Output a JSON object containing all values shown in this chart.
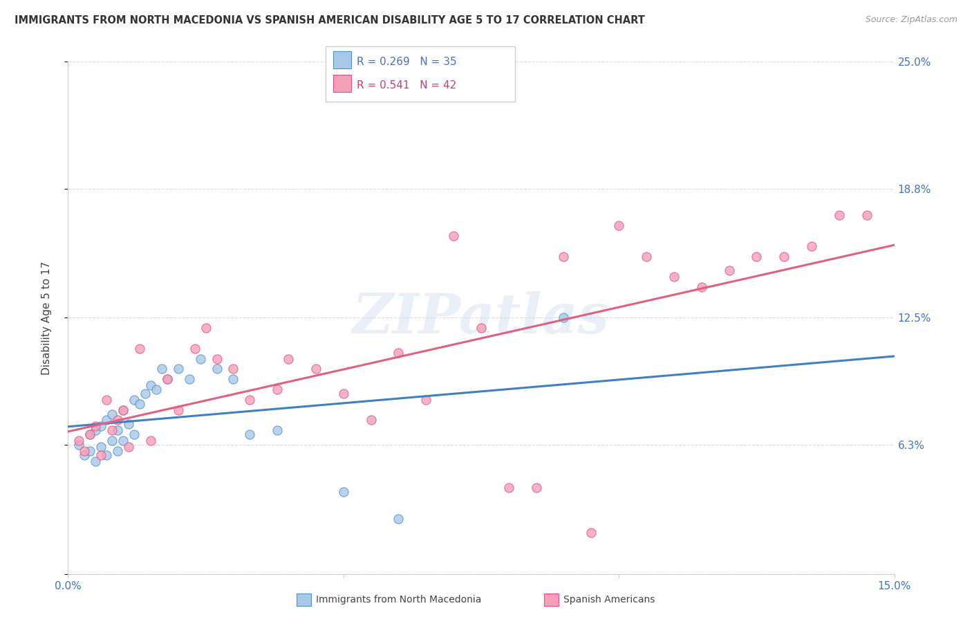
{
  "title": "IMMIGRANTS FROM NORTH MACEDONIA VS SPANISH AMERICAN DISABILITY AGE 5 TO 17 CORRELATION CHART",
  "source": "Source: ZipAtlas.com",
  "ylabel": "Disability Age 5 to 17",
  "xlim": [
    0.0,
    0.15
  ],
  "ylim": [
    0.0,
    0.25
  ],
  "xticks": [
    0.0,
    0.05,
    0.1,
    0.15
  ],
  "xticklabels": [
    "0.0%",
    "",
    "",
    "15.0%"
  ],
  "yticks": [
    0.0,
    0.063,
    0.125,
    0.188,
    0.25
  ],
  "yticklabels": [
    "",
    "6.3%",
    "12.5%",
    "18.8%",
    "25.0%"
  ],
  "legend_r1": "R = 0.269",
  "legend_n1": "N = 35",
  "legend_r2": "R = 0.541",
  "legend_n2": "N = 42",
  "color_blue": "#a8c8e8",
  "color_pink": "#f4a0b8",
  "color_blue_edge": "#5090c8",
  "color_pink_edge": "#e85080",
  "color_blue_line": "#4080c0",
  "color_pink_line": "#e06080",
  "color_axis_tick": "#4472C4",
  "watermark": "ZIPatlas",
  "grid_color": "#d8d8d8",
  "background_color": "#ffffff",
  "blue_scatter_x": [
    0.002,
    0.003,
    0.004,
    0.004,
    0.005,
    0.005,
    0.006,
    0.006,
    0.007,
    0.007,
    0.008,
    0.008,
    0.009,
    0.009,
    0.01,
    0.01,
    0.011,
    0.012,
    0.012,
    0.013,
    0.014,
    0.015,
    0.016,
    0.017,
    0.018,
    0.02,
    0.022,
    0.024,
    0.027,
    0.03,
    0.033,
    0.038,
    0.05,
    0.06,
    0.09
  ],
  "blue_scatter_y": [
    0.063,
    0.058,
    0.06,
    0.068,
    0.055,
    0.07,
    0.062,
    0.072,
    0.058,
    0.075,
    0.065,
    0.078,
    0.06,
    0.07,
    0.065,
    0.08,
    0.073,
    0.068,
    0.085,
    0.083,
    0.088,
    0.092,
    0.09,
    0.1,
    0.095,
    0.1,
    0.095,
    0.105,
    0.1,
    0.095,
    0.068,
    0.07,
    0.04,
    0.027,
    0.125
  ],
  "pink_scatter_x": [
    0.002,
    0.003,
    0.004,
    0.005,
    0.006,
    0.007,
    0.008,
    0.009,
    0.01,
    0.011,
    0.013,
    0.015,
    0.018,
    0.02,
    0.023,
    0.025,
    0.027,
    0.03,
    0.033,
    0.038,
    0.04,
    0.045,
    0.05,
    0.055,
    0.06,
    0.065,
    0.07,
    0.075,
    0.08,
    0.085,
    0.09,
    0.095,
    0.1,
    0.105,
    0.11,
    0.115,
    0.12,
    0.125,
    0.13,
    0.135,
    0.14,
    0.145
  ],
  "pink_scatter_y": [
    0.065,
    0.06,
    0.068,
    0.072,
    0.058,
    0.085,
    0.07,
    0.075,
    0.08,
    0.062,
    0.11,
    0.065,
    0.095,
    0.08,
    0.11,
    0.12,
    0.105,
    0.1,
    0.085,
    0.09,
    0.105,
    0.1,
    0.088,
    0.075,
    0.108,
    0.085,
    0.165,
    0.12,
    0.042,
    0.042,
    0.155,
    0.02,
    0.17,
    0.155,
    0.145,
    0.14,
    0.148,
    0.155,
    0.155,
    0.16,
    0.175,
    0.175
  ],
  "blue_line_x": [
    0.0,
    0.15
  ],
  "blue_line_y": [
    0.066,
    0.125
  ],
  "pink_line_x": [
    0.0,
    0.15
  ],
  "pink_line_y": [
    0.06,
    0.17
  ]
}
